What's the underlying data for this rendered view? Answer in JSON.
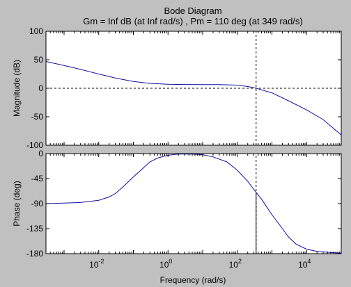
{
  "window": {
    "background": "#c0c0c0",
    "plot_background": "#ffffff",
    "line_color": "#1010a0"
  },
  "chart_data": [
    {
      "type": "line",
      "title": "Bode Diagram",
      "subtitle": "Gm = Inf dB (at Inf rad/s) ,  Pm = 110 deg (at 349 rad/s)",
      "xlabel": "",
      "ylabel": "Magnitude (dB)",
      "xscale": "log",
      "xlim": [
        0.0003,
        100000
      ],
      "ylim": [
        -100,
        100
      ],
      "yticks": [
        100,
        50,
        0,
        -50,
        -100
      ],
      "ytick_labels": [
        "100",
        "50",
        "0",
        "-50",
        "-100"
      ],
      "grid": false,
      "series": [
        {
          "x": [
            0.0003,
            0.001,
            0.003,
            0.01,
            0.03,
            0.1,
            0.3,
            1,
            3,
            10,
            30,
            100,
            200,
            349,
            1000,
            3000,
            10000,
            30000,
            100000
          ],
          "y": [
            47,
            40,
            33,
            25,
            18,
            12,
            8.5,
            7,
            6.6,
            6.5,
            6.4,
            5.5,
            3,
            0,
            -8,
            -22,
            -38,
            -55,
            -82
          ]
        }
      ],
      "reference_lines": [
        {
          "axis": "y",
          "value": 0,
          "style": "dashed"
        },
        {
          "axis": "x",
          "value": 349,
          "style": "dashed"
        }
      ]
    },
    {
      "type": "line",
      "xlabel": "Frequency  (rad/s)",
      "ylabel": "Phase (deg)",
      "xscale": "log",
      "xlim": [
        0.0003,
        100000
      ],
      "ylim": [
        -180,
        0
      ],
      "xticks": [
        0.01,
        1,
        100,
        10000
      ],
      "xtick_labels": [
        {
          "base": "10",
          "exp": "-2"
        },
        {
          "base": "10",
          "exp": "0"
        },
        {
          "base": "10",
          "exp": "2"
        },
        {
          "base": "10",
          "exp": "4"
        }
      ],
      "yticks": [
        0,
        -45,
        -90,
        -135,
        -180
      ],
      "ytick_labels": [
        "0",
        "-45",
        "-90",
        "-135",
        "-180"
      ],
      "grid": false,
      "series": [
        {
          "x": [
            0.0003,
            0.001,
            0.003,
            0.01,
            0.02,
            0.03,
            0.05,
            0.1,
            0.2,
            0.3,
            0.5,
            1,
            2,
            5,
            10,
            20,
            50,
            100,
            200,
            349,
            500,
            1000,
            2000,
            3000,
            5000,
            10000,
            20000,
            50000,
            100000
          ],
          "y": [
            -90,
            -89,
            -88,
            -84,
            -78,
            -72,
            -60,
            -42,
            -25,
            -15,
            -8,
            -3,
            -1,
            -1,
            -2,
            -6,
            -15,
            -30,
            -50,
            -70,
            -82,
            -110,
            -135,
            -150,
            -163,
            -172,
            -176,
            -178,
            -179
          ]
        }
      ],
      "reference_lines": [
        {
          "axis": "y",
          "value": -180,
          "style": "dashed"
        },
        {
          "axis": "x",
          "value": 349,
          "style": "dashed",
          "from": -180,
          "to": 0
        },
        {
          "axis": "x",
          "value": 349,
          "style": "solid",
          "from": -180,
          "to": -70
        }
      ]
    }
  ]
}
